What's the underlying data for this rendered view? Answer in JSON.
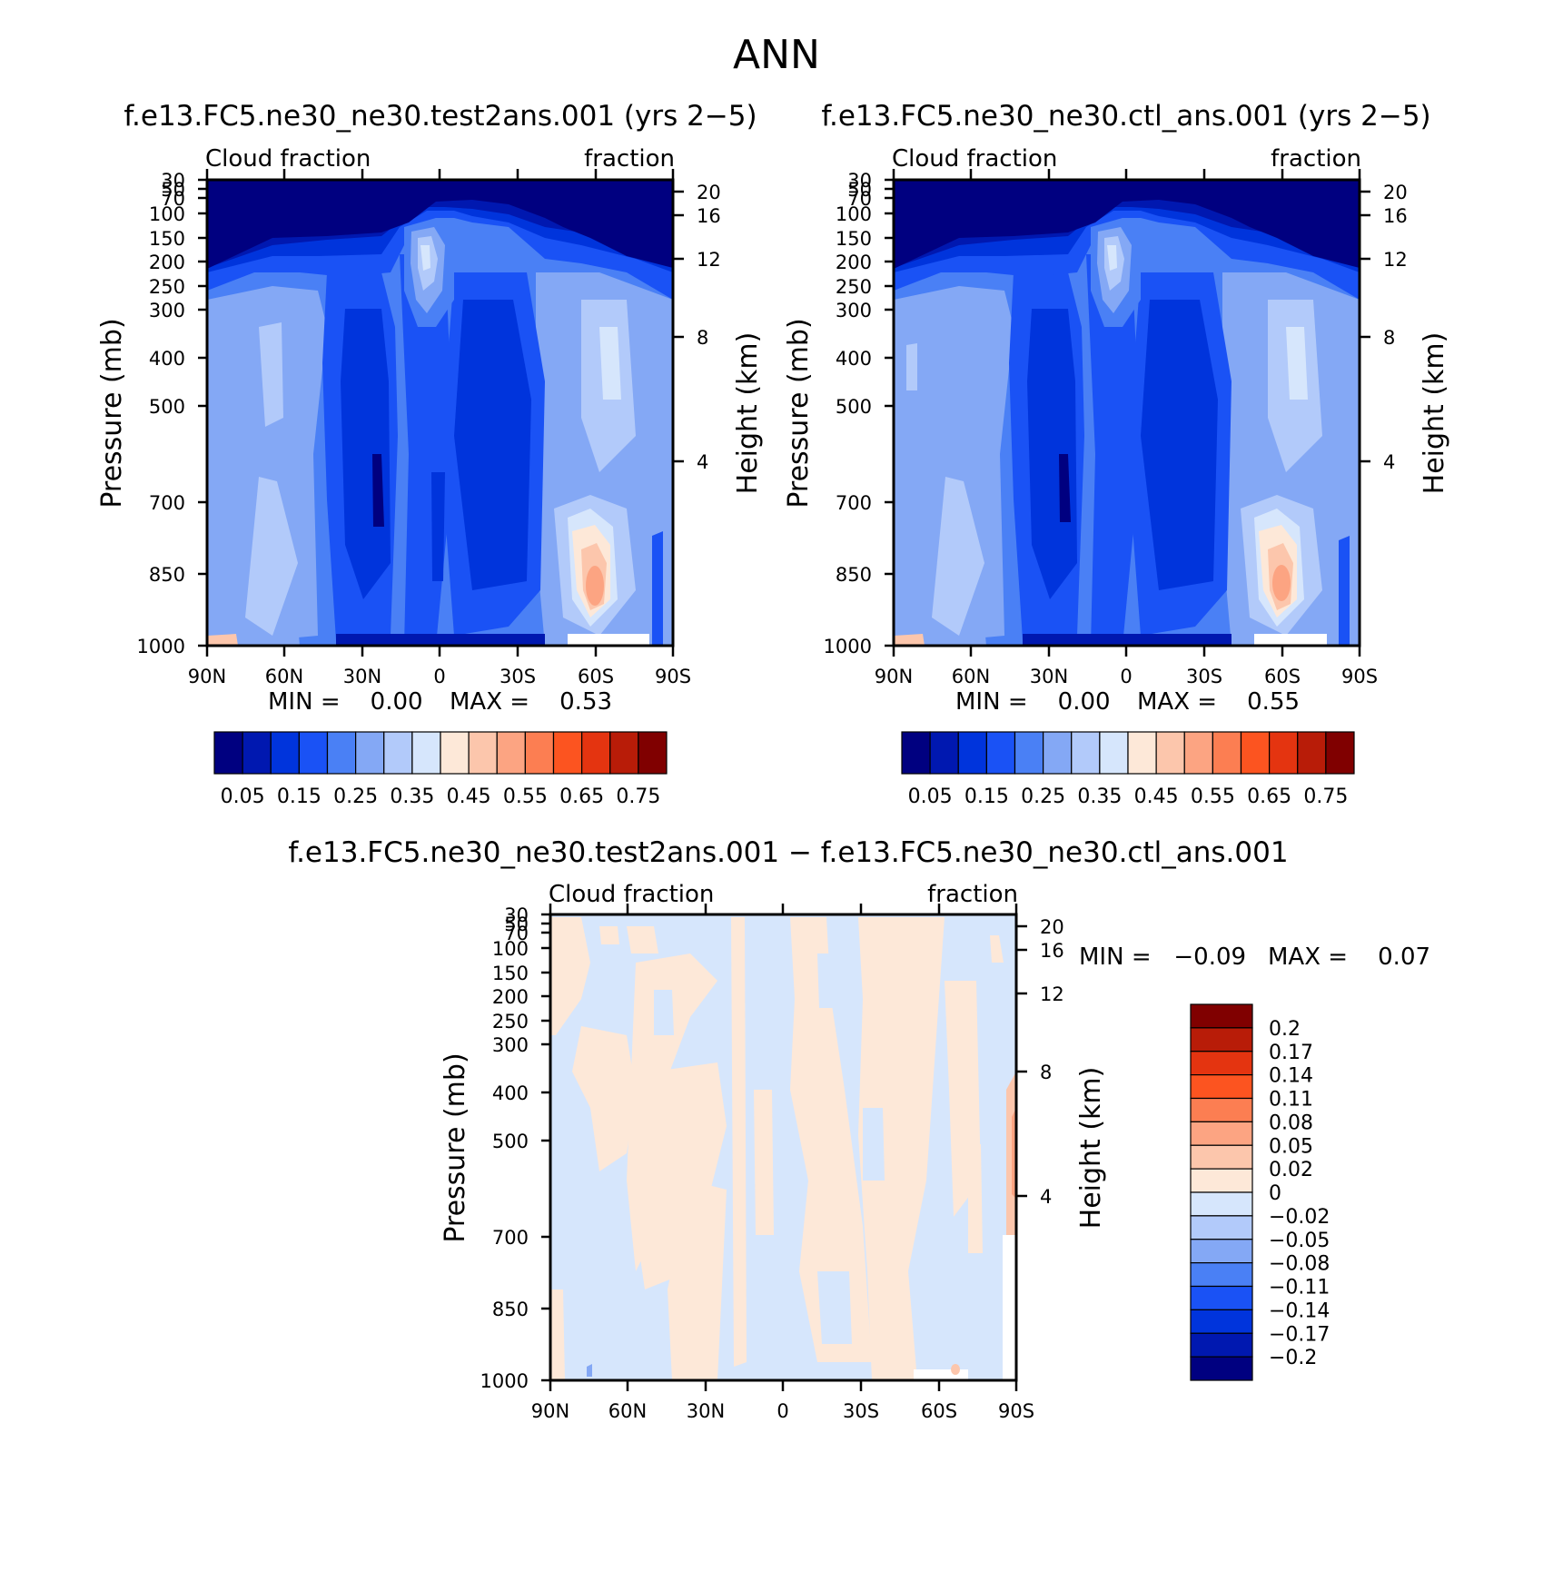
{
  "figure_title": "ANN",
  "colors": {
    "main_levels": [
      "#000080",
      "#0018b0",
      "#0034dc",
      "#1a52f5",
      "#4a80f5",
      "#84a8f5",
      "#b2cafa",
      "#d6e6fc",
      "#fde8d8",
      "#fcc6ac",
      "#fca482",
      "#fc7e52",
      "#fc5420",
      "#e43410",
      "#b81c08",
      "#800000"
    ],
    "diff_levels": [
      "#000080",
      "#0018b0",
      "#0034dc",
      "#1a52f5",
      "#4a80f5",
      "#84a8f5",
      "#b2cafa",
      "#d6e6fc",
      "#fde8d8",
      "#fcc6ac",
      "#fca482",
      "#fc7e52",
      "#fc5420",
      "#e43410",
      "#b81c08",
      "#800000"
    ]
  },
  "labels": {
    "p1_title": "f.e13.FC5.ne30_ne30.test2ans.001 (yrs 2−5)",
    "p2_title": "f.e13.FC5.ne30_ne30.ctl_ans.001 (yrs 2−5)",
    "p3_title": "f.e13.FC5.ne30_ne30.test2ans.001 − f.e13.FC5.ne30_ne30.ctl_ans.001",
    "left_string": "Cloud fraction",
    "right_string": "fraction",
    "ylabel": "Pressure (mb)",
    "y2label": "Height (km)",
    "p1_min": "MIN =    0.00",
    "p1_max": "MAX =    0.53",
    "p2_min": "MIN =    0.00",
    "p2_max": "MAX =    0.55",
    "p3_min": "MIN =   −0.09",
    "p3_max": "MAX =    0.07"
  },
  "chart_data": [
    {
      "type": "heatmap",
      "title": "f.e13.FC5.ne30_ne30.test2ans.001 (yrs 2−5)",
      "left_string": "Cloud fraction",
      "right_string": "fraction",
      "xlabel": "",
      "ylabel": "Pressure (mb)",
      "y2label": "Height (km)",
      "xticks": [
        "90N",
        "60N",
        "30N",
        "0",
        "30S",
        "60S",
        "90S"
      ],
      "yticks": [
        30,
        50,
        70,
        100,
        150,
        200,
        250,
        300,
        400,
        500,
        700,
        850,
        1000
      ],
      "y2ticks": [
        20,
        16,
        12,
        8,
        4
      ],
      "ylim": [
        1000,
        30
      ],
      "min": 0.0,
      "max": 0.53,
      "colorbar_labels": [
        "0.05",
        "0.15",
        "0.25",
        "0.35",
        "0.45",
        "0.55",
        "0.65",
        "0.75"
      ]
    },
    {
      "type": "heatmap",
      "title": "f.e13.FC5.ne30_ne30.ctl_ans.001 (yrs 2−5)",
      "left_string": "Cloud fraction",
      "right_string": "fraction",
      "xlabel": "",
      "ylabel": "Pressure (mb)",
      "y2label": "Height (km)",
      "xticks": [
        "90N",
        "60N",
        "30N",
        "0",
        "30S",
        "60S",
        "90S"
      ],
      "yticks": [
        30,
        50,
        70,
        100,
        150,
        200,
        250,
        300,
        400,
        500,
        700,
        850,
        1000
      ],
      "y2ticks": [
        20,
        16,
        12,
        8,
        4
      ],
      "ylim": [
        1000,
        30
      ],
      "min": 0.0,
      "max": 0.55,
      "colorbar_labels": [
        "0.05",
        "0.15",
        "0.25",
        "0.35",
        "0.45",
        "0.55",
        "0.65",
        "0.75"
      ]
    },
    {
      "type": "heatmap",
      "title": "f.e13.FC5.ne30_ne30.test2ans.001 − f.e13.FC5.ne30_ne30.ctl_ans.001",
      "left_string": "Cloud fraction",
      "right_string": "fraction",
      "xlabel": "",
      "ylabel": "Pressure (mb)",
      "y2label": "Height (km)",
      "xticks": [
        "90N",
        "60N",
        "30N",
        "0",
        "30S",
        "60S",
        "90S"
      ],
      "yticks": [
        30,
        50,
        70,
        100,
        150,
        200,
        250,
        300,
        400,
        500,
        700,
        850,
        1000
      ],
      "y2ticks": [
        20,
        16,
        12,
        8,
        4
      ],
      "ylim": [
        1000,
        30
      ],
      "min": -0.09,
      "max": 0.07,
      "colorbar_labels": [
        "0.2",
        "0.17",
        "0.14",
        "0.11",
        "0.08",
        "0.05",
        "0.02",
        "0",
        "−0.02",
        "−0.05",
        "−0.08",
        "−0.11",
        "−0.14",
        "−0.17",
        "−0.2"
      ]
    }
  ]
}
